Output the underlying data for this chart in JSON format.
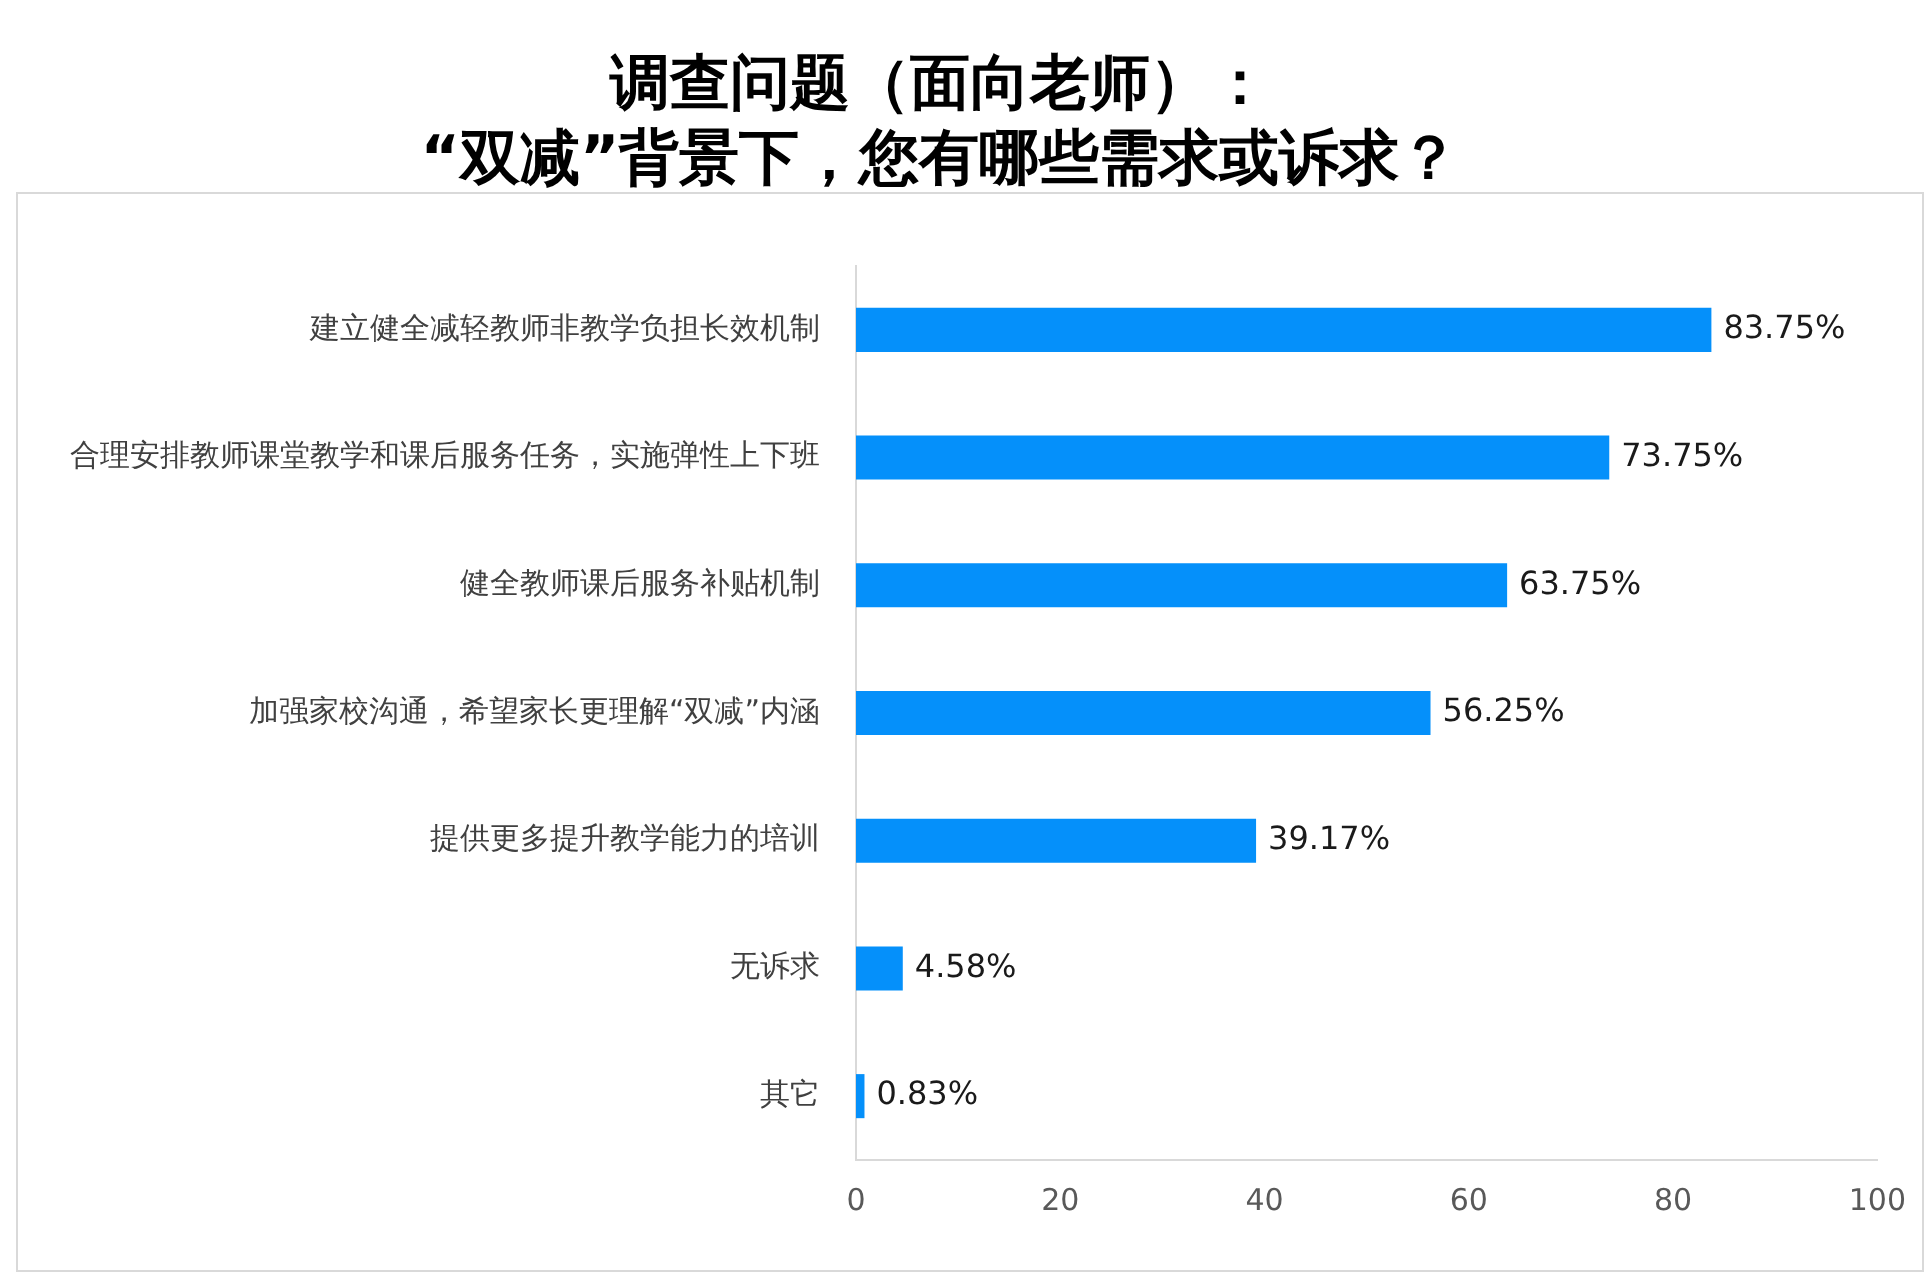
{
  "chart_data": {
    "type": "bar",
    "orientation": "horizontal",
    "title": "调查问题（面向老师）：\n“双减”背景下，您有哪些需求或诉求？",
    "categories": [
      "建立健全减轻教师非教学负担长效机制",
      "合理安排教师课堂教学和课后服务任务，实施弹性上下班",
      "健全教师课后服务补贴机制",
      "加强家校沟通，希望家长更理解“双减”内涵",
      "提供更多提升教学能力的培训",
      "无诉求",
      "其它"
    ],
    "values": [
      83.75,
      73.75,
      63.75,
      56.25,
      39.17,
      4.58,
      0.83
    ],
    "value_labels": [
      "83.75%",
      "73.75%",
      "63.75%",
      "56.25%",
      "39.17%",
      "4.58%",
      "0.83%"
    ],
    "color": "#0590fa",
    "xlim": [
      0,
      100
    ],
    "xticks": [
      0,
      20,
      40,
      60,
      80,
      100
    ],
    "grid": false,
    "legend": false
  }
}
